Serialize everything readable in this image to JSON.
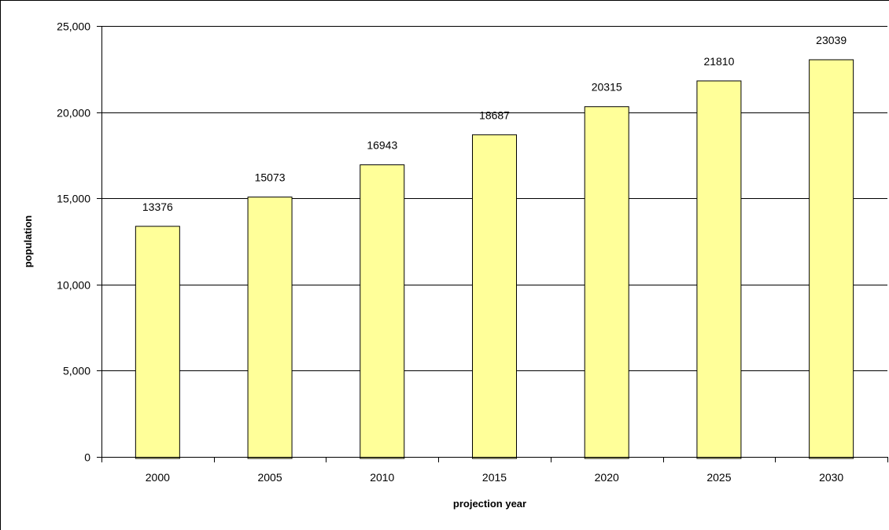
{
  "chart_data": {
    "type": "bar",
    "categories": [
      "2000",
      "2005",
      "2010",
      "2015",
      "2020",
      "2025",
      "2030"
    ],
    "values": [
      13376,
      15073,
      16943,
      18687,
      20315,
      21810,
      23039
    ],
    "data_labels": [
      "13376",
      "15073",
      "16943",
      "18687",
      "20315",
      "21810",
      "23039"
    ],
    "xlabel": "projection year",
    "ylabel": "population",
    "ylim": [
      0,
      25000
    ],
    "yticks": [
      0,
      5000,
      10000,
      15000,
      20000,
      25000
    ],
    "ytick_labels": [
      "0",
      "5,000",
      "10,000",
      "15,000",
      "20,000",
      "25,000"
    ],
    "grid": true,
    "legend": "none",
    "colors": {
      "bar_fill": "#ffff99",
      "bar_stroke": "#000000",
      "grid": "#000000",
      "frame": "#000000"
    }
  }
}
